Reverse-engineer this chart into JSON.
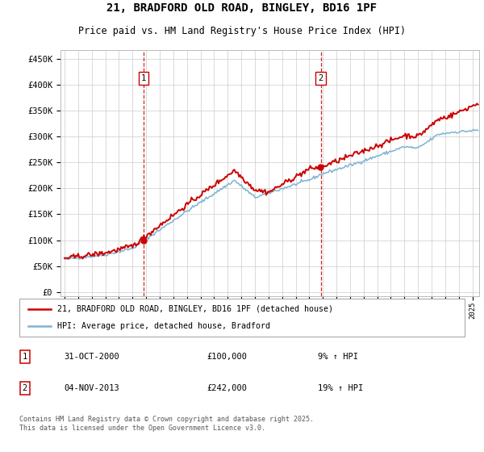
{
  "title": "21, BRADFORD OLD ROAD, BINGLEY, BD16 1PF",
  "subtitle": "Price paid vs. HM Land Registry's House Price Index (HPI)",
  "yticks": [
    0,
    50000,
    100000,
    150000,
    200000,
    250000,
    300000,
    350000,
    400000,
    450000
  ],
  "ylim": [
    -8000,
    468000
  ],
  "xlim_start": 1994.7,
  "xlim_end": 2025.5,
  "sale1_x": 2000.83,
  "sale1_y": 100000,
  "sale1_label": "1",
  "sale2_x": 2013.84,
  "sale2_y": 242000,
  "sale2_label": "2",
  "red_line_color": "#cc0000",
  "blue_line_color": "#7fb3d3",
  "dashed_color": "#cc0000",
  "background_color": "#ffffff",
  "grid_color": "#cccccc",
  "legend1": "21, BRADFORD OLD ROAD, BINGLEY, BD16 1PF (detached house)",
  "legend2": "HPI: Average price, detached house, Bradford",
  "note1_num": "1",
  "note1_date": "31-OCT-2000",
  "note1_price": "£100,000",
  "note1_hpi": "9% ↑ HPI",
  "note2_num": "2",
  "note2_date": "04-NOV-2013",
  "note2_price": "£242,000",
  "note2_hpi": "19% ↑ HPI",
  "footer": "Contains HM Land Registry data © Crown copyright and database right 2025.\nThis data is licensed under the Open Government Licence v3.0."
}
